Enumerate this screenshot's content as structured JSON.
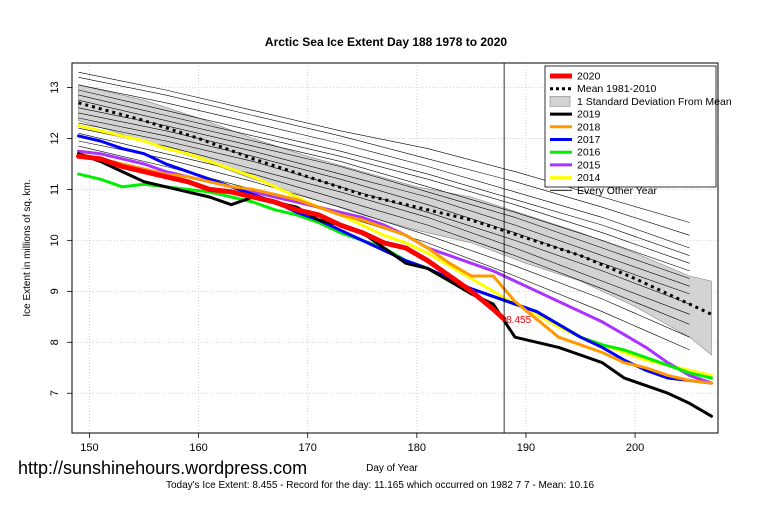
{
  "chart_data": {
    "type": "line",
    "title": "Arctic Sea Ice Extent Day 188 1978 to 2020",
    "xlabel": "Day of Year",
    "ylabel": "Ice Extent in millions of sq. km.",
    "xlim": [
      148.4,
      207.6
    ],
    "ylim": [
      6.22,
      13.48
    ],
    "x_ticks": [
      150,
      160,
      170,
      180,
      190,
      200
    ],
    "y_ticks": [
      7,
      8,
      9,
      10,
      11,
      12,
      13
    ],
    "grid": true,
    "legend_position": "top-right",
    "marker_day": 188,
    "marker_value": 8.455,
    "marker_label": "8.455",
    "mean": {
      "name": "Mean 1981-2010",
      "x": [
        149,
        155,
        160,
        165,
        170,
        175,
        180,
        185,
        190,
        195,
        200,
        205,
        207
      ],
      "y": [
        12.7,
        12.35,
        12.0,
        11.6,
        11.25,
        10.9,
        10.65,
        10.4,
        10.05,
        9.7,
        9.25,
        8.75,
        8.55
      ]
    },
    "std_band": {
      "name": "1 Standard Deviation From Mean",
      "x": [
        149,
        155,
        160,
        165,
        170,
        175,
        180,
        185,
        190,
        195,
        200,
        205,
        207
      ],
      "upper": [
        13.05,
        12.75,
        12.4,
        12.0,
        11.65,
        11.35,
        11.05,
        10.85,
        10.5,
        10.15,
        9.75,
        9.3,
        9.2
      ],
      "lower": [
        12.35,
        11.95,
        11.6,
        11.2,
        10.85,
        10.5,
        10.2,
        9.95,
        9.55,
        9.2,
        8.7,
        8.1,
        7.75
      ]
    },
    "series": [
      {
        "name": "2020",
        "color": "#ff0000",
        "x": [
          149,
          151,
          153,
          155,
          157,
          159,
          161,
          163,
          165,
          167,
          169,
          171,
          173,
          175,
          177,
          179,
          181,
          183,
          185,
          187,
          188
        ],
        "y": [
          11.65,
          11.6,
          11.45,
          11.35,
          11.25,
          11.15,
          11.0,
          10.95,
          10.85,
          10.75,
          10.6,
          10.5,
          10.3,
          10.15,
          9.95,
          9.85,
          9.6,
          9.3,
          9.0,
          8.65,
          8.455
        ]
      },
      {
        "name": "2019",
        "color": "#000000",
        "x": [
          149,
          151,
          153,
          155,
          157,
          159,
          161,
          163,
          165,
          167,
          169,
          171,
          173,
          175,
          177,
          179,
          181,
          183,
          185,
          187,
          189,
          191,
          193,
          195,
          197,
          199,
          201,
          203,
          205,
          207
        ],
        "y": [
          11.7,
          11.55,
          11.35,
          11.15,
          11.05,
          10.95,
          10.85,
          10.7,
          10.85,
          10.75,
          10.65,
          10.4,
          10.3,
          10.15,
          9.85,
          9.55,
          9.45,
          9.2,
          8.95,
          8.75,
          8.1,
          8.0,
          7.9,
          7.75,
          7.6,
          7.3,
          7.15,
          7.0,
          6.8,
          6.55
        ]
      },
      {
        "name": "2018",
        "color": "#ff9900",
        "x": [
          149,
          151,
          153,
          155,
          157,
          159,
          161,
          163,
          165,
          167,
          169,
          171,
          173,
          175,
          177,
          179,
          181,
          183,
          185,
          187,
          189,
          191,
          193,
          195,
          197,
          199,
          201,
          203,
          205,
          207
        ],
        "y": [
          11.7,
          11.6,
          11.5,
          11.4,
          11.3,
          11.25,
          11.15,
          11.05,
          11.0,
          10.9,
          10.8,
          10.65,
          10.5,
          10.4,
          10.25,
          10.1,
          9.85,
          9.55,
          9.3,
          9.3,
          8.8,
          8.45,
          8.1,
          7.95,
          7.8,
          7.6,
          7.5,
          7.35,
          7.25,
          7.2
        ]
      },
      {
        "name": "2017",
        "color": "#0000ff",
        "x": [
          149,
          151,
          153,
          155,
          157,
          159,
          161,
          163,
          165,
          167,
          169,
          171,
          173,
          175,
          177,
          179,
          181,
          183,
          185,
          187,
          189,
          191,
          193,
          195,
          197,
          199,
          201,
          203,
          205,
          207
        ],
        "y": [
          12.05,
          11.95,
          11.8,
          11.7,
          11.5,
          11.35,
          11.2,
          11.05,
          10.9,
          10.75,
          10.55,
          10.4,
          10.2,
          10.0,
          9.8,
          9.6,
          9.45,
          9.25,
          9.05,
          8.9,
          8.75,
          8.6,
          8.35,
          8.1,
          7.9,
          7.65,
          7.45,
          7.3,
          7.25,
          7.2
        ]
      },
      {
        "name": "2016",
        "color": "#00ee00",
        "x": [
          149,
          151,
          153,
          155,
          157,
          159,
          161,
          163,
          165,
          167,
          169,
          171,
          173,
          175,
          177,
          179,
          181,
          183,
          185,
          187,
          189,
          191,
          193,
          195,
          197,
          199,
          201,
          203,
          205,
          207
        ],
        "y": [
          11.3,
          11.2,
          11.05,
          11.1,
          11.05,
          11.0,
          10.95,
          10.85,
          10.75,
          10.6,
          10.5,
          10.35,
          10.15,
          10.0,
          9.85,
          9.6,
          9.45,
          9.2,
          9.05,
          8.9,
          8.75,
          8.6,
          8.35,
          8.1,
          7.95,
          7.85,
          7.7,
          7.55,
          7.4,
          7.3
        ]
      },
      {
        "name": "2015",
        "color": "#aa33ff",
        "x": [
          149,
          151,
          153,
          155,
          157,
          159,
          161,
          163,
          165,
          167,
          169,
          171,
          173,
          175,
          177,
          179,
          181,
          183,
          185,
          187,
          189,
          191,
          193,
          195,
          197,
          199,
          201,
          203,
          205,
          207
        ],
        "y": [
          11.75,
          11.7,
          11.6,
          11.5,
          11.35,
          11.25,
          11.15,
          11.05,
          10.95,
          10.85,
          10.75,
          10.65,
          10.55,
          10.45,
          10.3,
          10.1,
          9.85,
          9.7,
          9.55,
          9.4,
          9.2,
          9.0,
          8.8,
          8.6,
          8.4,
          8.15,
          7.9,
          7.6,
          7.35,
          7.2
        ]
      },
      {
        "name": "2014",
        "color": "#ffff00",
        "x": [
          149,
          151,
          153,
          155,
          157,
          159,
          161,
          163,
          165,
          167,
          169,
          171,
          173,
          175,
          177,
          179,
          181,
          183,
          185,
          187,
          189,
          191,
          193,
          195,
          197,
          199,
          201,
          203,
          205,
          207
        ],
        "y": [
          12.25,
          12.15,
          12.05,
          11.95,
          11.8,
          11.7,
          11.55,
          11.4,
          11.25,
          11.05,
          10.85,
          10.65,
          10.5,
          10.3,
          10.1,
          9.95,
          9.75,
          9.5,
          9.25,
          9.0,
          8.75,
          8.55,
          8.3,
          8.1,
          7.95,
          7.8,
          7.65,
          7.55,
          7.45,
          7.35
        ]
      },
      {
        "name": "Every Other Year",
        "color": "#000000",
        "type": "thin",
        "x": [
          149,
          157,
          165,
          173,
          181,
          189,
          197,
          205
        ],
        "curves": [
          [
            13.3,
            12.95,
            12.55,
            12.15,
            11.8,
            11.35,
            10.85,
            10.35
          ],
          [
            13.2,
            12.85,
            12.45,
            12.05,
            11.6,
            11.15,
            10.65,
            10.1
          ],
          [
            13.05,
            12.7,
            12.3,
            11.9,
            11.45,
            10.95,
            10.45,
            9.85
          ],
          [
            12.95,
            12.55,
            12.15,
            11.75,
            11.3,
            10.8,
            10.3,
            9.7
          ],
          [
            12.85,
            12.45,
            12.05,
            11.65,
            11.2,
            10.7,
            10.15,
            9.55
          ],
          [
            12.75,
            12.35,
            11.95,
            11.55,
            11.05,
            10.55,
            10.0,
            9.4
          ],
          [
            12.6,
            12.25,
            11.85,
            11.45,
            10.95,
            10.45,
            9.85,
            9.25
          ],
          [
            12.5,
            12.15,
            11.75,
            11.3,
            10.85,
            10.3,
            9.7,
            9.1
          ],
          [
            12.4,
            12.05,
            11.65,
            11.2,
            10.7,
            10.15,
            9.55,
            8.95
          ],
          [
            12.3,
            11.95,
            11.55,
            11.05,
            10.55,
            10.0,
            9.4,
            8.75
          ],
          [
            12.2,
            11.85,
            11.4,
            10.95,
            10.45,
            9.85,
            9.2,
            8.55
          ],
          [
            12.1,
            11.7,
            11.3,
            10.8,
            10.3,
            9.7,
            9.05,
            8.35
          ],
          [
            11.95,
            11.6,
            11.15,
            10.65,
            10.1,
            9.5,
            8.85,
            8.1
          ],
          [
            11.85,
            11.45,
            11.0,
            10.5,
            9.95,
            9.3,
            8.6,
            7.85
          ]
        ]
      }
    ]
  },
  "watermark": "http://sunshinehours.wordpress.com",
  "footer": "Today's Ice Extent: 8.455  - Record for the day: 11.165 which occurred on 1982 7 7  - Mean: 10.16"
}
